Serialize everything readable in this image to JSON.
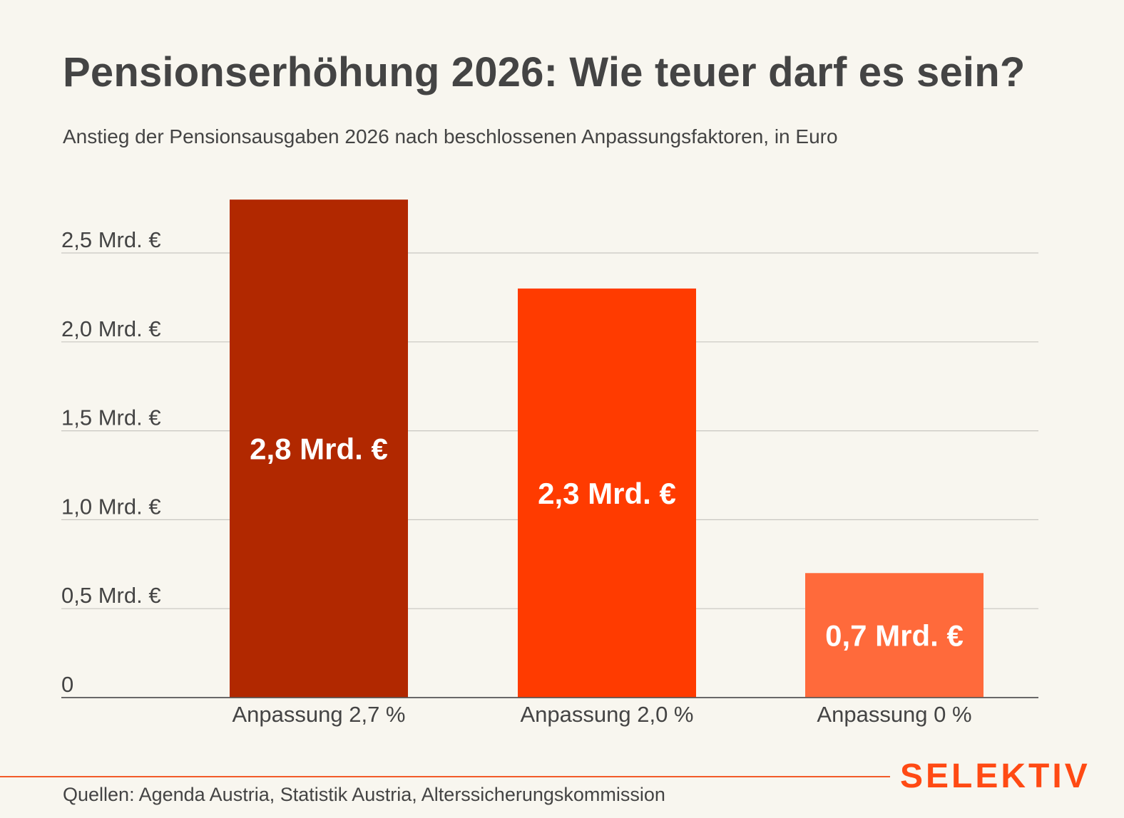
{
  "title": "Pensionserhöhung 2026: Wie teuer darf es sein?",
  "subtitle": "Anstieg der Pensionsausgaben 2026 nach beschlossenen Anpassungsfaktoren, in Euro",
  "chart_data": {
    "type": "bar",
    "title": "Pensionserhöhung 2026: Wie teuer darf es sein?",
    "subtitle": "Anstieg der Pensionsausgaben 2026 nach beschlossenen Anpassungsfaktoren, in Euro",
    "unit": "Mrd. €",
    "categories": [
      "Anpassung 2,7 %",
      "Anpassung 2,0 %",
      "Anpassung 0 %"
    ],
    "values": [
      2.8,
      2.3,
      0.7
    ],
    "value_labels": [
      "2,8 Mrd. €",
      "2,3 Mrd. €",
      "0,7 Mrd. €"
    ],
    "colors": [
      "#b12800",
      "#ff3b00",
      "#ff6a3b"
    ],
    "yticks": [
      0,
      0.5,
      1.0,
      1.5,
      2.0,
      2.5
    ],
    "ytick_labels": [
      "0",
      "0,5 Mrd. €",
      "1,0 Mrd. €",
      "1,5 Mrd. €",
      "2,0 Mrd. €",
      "2,5 Mrd. €"
    ],
    "ylim": [
      0,
      2.8
    ],
    "grid": true,
    "xlabel": "",
    "ylabel": ""
  },
  "footer": {
    "source": "Quellen: Agenda Austria, Statistik Austria, Alterssicherungskommission",
    "brand": "SELEKTIV"
  },
  "colors": {
    "background": "#f8f6ef",
    "text": "#444444",
    "gridline": "#c8c6c0",
    "brand": "#ff4a14"
  }
}
